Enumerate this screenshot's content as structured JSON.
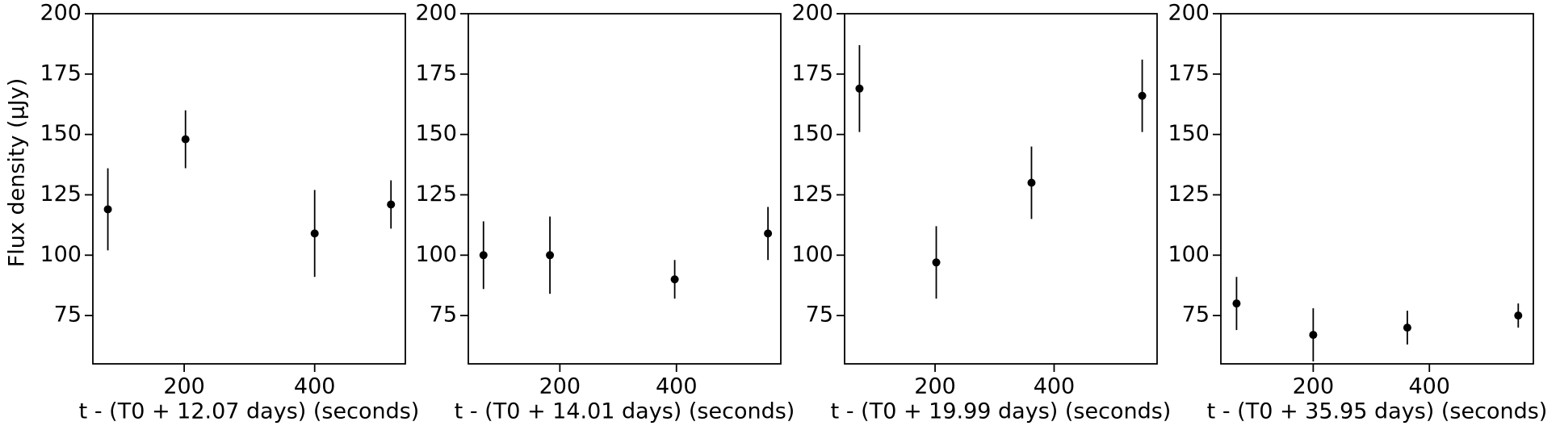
{
  "chart_data": [
    {
      "type": "scatter",
      "ylabel": "Flux density (μJy)",
      "xlabel": "t - (T0 + 12.07 days) (seconds)",
      "x": [
        83,
        202,
        400,
        517
      ],
      "values": [
        119,
        148,
        109,
        121
      ],
      "errors": [
        17,
        12,
        18,
        10
      ],
      "color": "#000000",
      "xlim": [
        60,
        539
      ],
      "ylim": [
        55,
        200
      ],
      "xticks": [
        200,
        400
      ],
      "yticks": [
        75,
        100,
        125,
        150,
        175,
        200
      ]
    },
    {
      "type": "scatter",
      "xlabel": "t - (T0 + 14.01 days) (seconds)",
      "x": [
        69,
        183,
        397,
        557
      ],
      "values": [
        100,
        100,
        90,
        109
      ],
      "errors": [
        14,
        16,
        8,
        11
      ],
      "color": "#000000",
      "xlim": [
        43,
        579
      ],
      "ylim": [
        55,
        200
      ],
      "xticks": [
        200,
        400
      ],
      "yticks": [
        75,
        100,
        125,
        150,
        175,
        200
      ]
    },
    {
      "type": "scatter",
      "xlabel": "t - (T0 + 19.99 days) (seconds)",
      "x": [
        73,
        202,
        362,
        548
      ],
      "values": [
        169,
        97,
        130,
        166
      ],
      "errors": [
        18,
        15,
        15,
        15
      ],
      "color": "#000000",
      "xlim": [
        48,
        573
      ],
      "ylim": [
        55,
        200
      ],
      "xticks": [
        200,
        400
      ],
      "yticks": [
        75,
        100,
        125,
        150,
        175,
        200
      ]
    },
    {
      "type": "scatter",
      "xlabel": "t - (T0 + 35.95 days) (seconds)",
      "x": [
        68,
        200,
        362,
        553
      ],
      "values": [
        80,
        67,
        70,
        75
      ],
      "errors": [
        11,
        11,
        7,
        5
      ],
      "color": "#000000",
      "xlim": [
        41,
        579
      ],
      "ylim": [
        55,
        200
      ],
      "xticks": [
        200,
        400
      ],
      "yticks": [
        75,
        100,
        125,
        150,
        175,
        200
      ]
    }
  ]
}
